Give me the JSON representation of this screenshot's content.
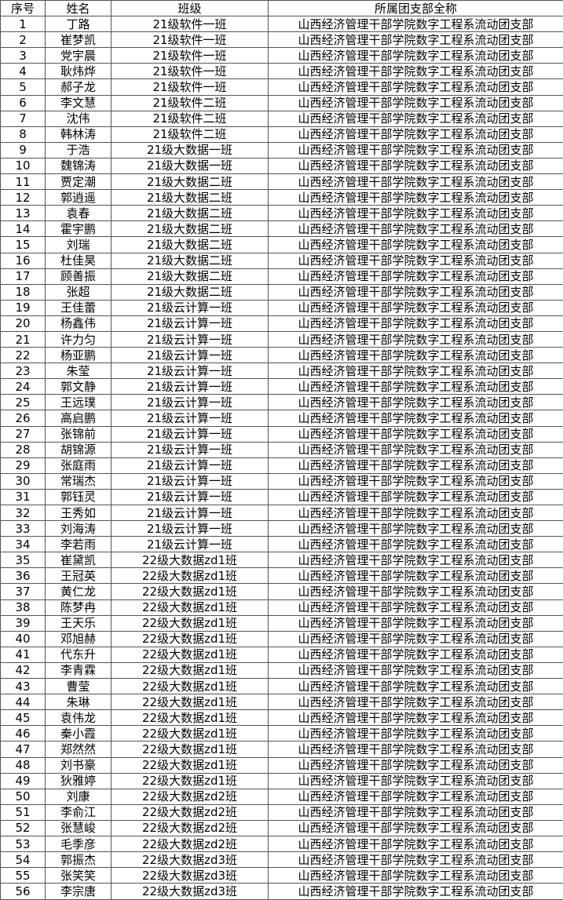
{
  "table": {
    "header": [
      "序号",
      "姓名",
      "班级",
      "所属团支部全称"
    ],
    "rows": [
      [
        1,
        "丁路",
        "21级软件一班",
        "山西经济管理干部学院数字工程系流动团支部"
      ],
      [
        2,
        "崔梦凯",
        "21级软件一班",
        "山西经济管理干部学院数字工程系流动团支部"
      ],
      [
        3,
        "党宇晨",
        "21级软件一班",
        "山西经济管理干部学院数字工程系流动团支部"
      ],
      [
        4,
        "耿炜烨",
        "21级软件一班",
        "山西经济管理干部学院数字工程系流动团支部"
      ],
      [
        5,
        "郝子龙",
        "21级软件一班",
        "山西经济管理干部学院数字工程系流动团支部"
      ],
      [
        6,
        "李文慧",
        "21级软件二班",
        "山西经济管理干部学院数字工程系流动团支部"
      ],
      [
        7,
        "沈伟",
        "21级软件二班",
        "山西经济管理干部学院数字工程系流动团支部"
      ],
      [
        8,
        "韩林涛",
        "21级软件二班",
        "山西经济管理干部学院数字工程系流动团支部"
      ],
      [
        9,
        "于浩",
        "21级大数据一班",
        "山西经济管理干部学院数字工程系流动团支部"
      ],
      [
        10,
        "魏锦涛",
        "21级大数据一班",
        "山西经济管理干部学院数字工程系流动团支部"
      ],
      [
        11,
        "贾定潮",
        "21级大数据二班",
        "山西经济管理干部学院数字工程系流动团支部"
      ],
      [
        12,
        "郭逍遥",
        "21级大数据二班",
        "山西经济管理干部学院数字工程系流动团支部"
      ],
      [
        13,
        "袁春",
        "21级大数据二班",
        "山西经济管理干部学院数字工程系流动团支部"
      ],
      [
        14,
        "霍宇鹏",
        "21级大数据二班",
        "山西经济管理干部学院数字工程系流动团支部"
      ],
      [
        15,
        "刘瑞",
        "21级大数据二班",
        "山西经济管理干部学院数字工程系流动团支部"
      ],
      [
        16,
        "杜佳昊",
        "21级大数据二班",
        "山西经济管理干部学院数字工程系流动团支部"
      ],
      [
        17,
        "顾善振",
        "21级大数据二班",
        "山西经济管理干部学院数字工程系流动团支部"
      ],
      [
        18,
        "张超",
        "21级大数据二班",
        "山西经济管理干部学院数字工程系流动团支部"
      ],
      [
        19,
        "王佳蕾",
        "21级云计算一班",
        "山西经济管理干部学院数字工程系流动团支部"
      ],
      [
        20,
        "杨鑫伟",
        "21级云计算一班",
        "山西经济管理干部学院数字工程系流动团支部"
      ],
      [
        21,
        "许力匀",
        "21级云计算一班",
        "山西经济管理干部学院数字工程系流动团支部"
      ],
      [
        22,
        "杨亚鹏",
        "21级云计算一班",
        "山西经济管理干部学院数字工程系流动团支部"
      ],
      [
        23,
        "朱莹",
        "21级云计算一班",
        "山西经济管理干部学院数字工程系流动团支部"
      ],
      [
        24,
        "郭文静",
        "21级云计算一班",
        "山西经济管理干部学院数字工程系流动团支部"
      ],
      [
        25,
        "王远璞",
        "21级云计算一班",
        "山西经济管理干部学院数字工程系流动团支部"
      ],
      [
        26,
        "高启鹏",
        "21级云计算一班",
        "山西经济管理干部学院数字工程系流动团支部"
      ],
      [
        27,
        "张锦前",
        "21级云计算一班",
        "山西经济管理干部学院数字工程系流动团支部"
      ],
      [
        28,
        "胡锦源",
        "21级云计算一班",
        "山西经济管理干部学院数字工程系流动团支部"
      ],
      [
        29,
        "张庭雨",
        "21级云计算一班",
        "山西经济管理干部学院数字工程系流动团支部"
      ],
      [
        30,
        "常瑞杰",
        "21级云计算一班",
        "山西经济管理干部学院数字工程系流动团支部"
      ],
      [
        31,
        "郭钰灵",
        "21级云计算一班",
        "山西经济管理干部学院数字工程系流动团支部"
      ],
      [
        32,
        "王秀如",
        "21级云计算一班",
        "山西经济管理干部学院数字工程系流动团支部"
      ],
      [
        33,
        "刘海涛",
        "21级云计算一班",
        "山西经济管理干部学院数字工程系流动团支部"
      ],
      [
        34,
        "李若雨",
        "21级云计算一班",
        "山西经济管理干部学院数字工程系流动团支部"
      ],
      [
        35,
        "崔黛凯",
        "22级大数据zd1班",
        "山西经济管理干部学院数字工程系流动团支部"
      ],
      [
        36,
        "王冠英",
        "22级大数据zd1班",
        "山西经济管理干部学院数字工程系流动团支部"
      ],
      [
        37,
        "黄仁龙",
        "22级大数据zd1班",
        "山西经济管理干部学院数字工程系流动团支部"
      ],
      [
        38,
        "陈梦冉",
        "22级大数据zd1班",
        "山西经济管理干部学院数字工程系流动团支部"
      ],
      [
        39,
        "王天乐",
        "22级大数据zd1班",
        "山西经济管理干部学院数字工程系流动团支部"
      ],
      [
        40,
        "邓旭赫",
        "22级大数据zd1班",
        "山西经济管理干部学院数字工程系流动团支部"
      ],
      [
        41,
        "代东升",
        "22级大数据zd1班",
        "山西经济管理干部学院数字工程系流动团支部"
      ],
      [
        42,
        "李青霖",
        "22级大数据zd1班",
        "山西经济管理干部学院数字工程系流动团支部"
      ],
      [
        43,
        "曹莹",
        "22级大数据zd1班",
        "山西经济管理干部学院数字工程系流动团支部"
      ],
      [
        44,
        "朱琳",
        "22级大数据zd1班",
        "山西经济管理干部学院数字工程系流动团支部"
      ],
      [
        45,
        "袁伟龙",
        "22级大数据zd1班",
        "山西经济管理干部学院数字工程系流动团支部"
      ],
      [
        46,
        "秦小霞",
        "22级大数据zd1班",
        "山西经济管理干部学院数字工程系流动团支部"
      ],
      [
        47,
        "郑然然",
        "22级大数据zd1班",
        "山西经济管理干部学院数字工程系流动团支部"
      ],
      [
        48,
        "刘书豪",
        "22级大数据zd1班",
        "山西经济管理干部学院数字工程系流动团支部"
      ],
      [
        49,
        "狄雅婷",
        "22级大数据zd1班",
        "山西经济管理干部学院数字工程系流动团支部"
      ],
      [
        50,
        "刘康",
        "22级大数据zd2班",
        "山西经济管理干部学院数字工程系流动团支部"
      ],
      [
        51,
        "李俞江",
        "22级大数据zd2班",
        "山西经济管理干部学院数字工程系流动团支部"
      ],
      [
        52,
        "张慧峻",
        "22级大数据zd2班",
        "山西经济管理干部学院数字工程系流动团支部"
      ],
      [
        53,
        "毛季彦",
        "22级大数据zd2班",
        "山西经济管理干部学院数字工程系流动团支部"
      ],
      [
        54,
        "郭振杰",
        "22级大数据zd3班",
        "山西经济管理干部学院数字工程系流动团支部"
      ],
      [
        55,
        "张笑笑",
        "22级大数据zd3班",
        "山西经济管理干部学院数字工程系流动团支部"
      ],
      [
        56,
        "李宗唐",
        "22级大数据zd3班",
        "山西经济管理干部学院数字工程系流动团支部"
      ]
    ]
  }
}
